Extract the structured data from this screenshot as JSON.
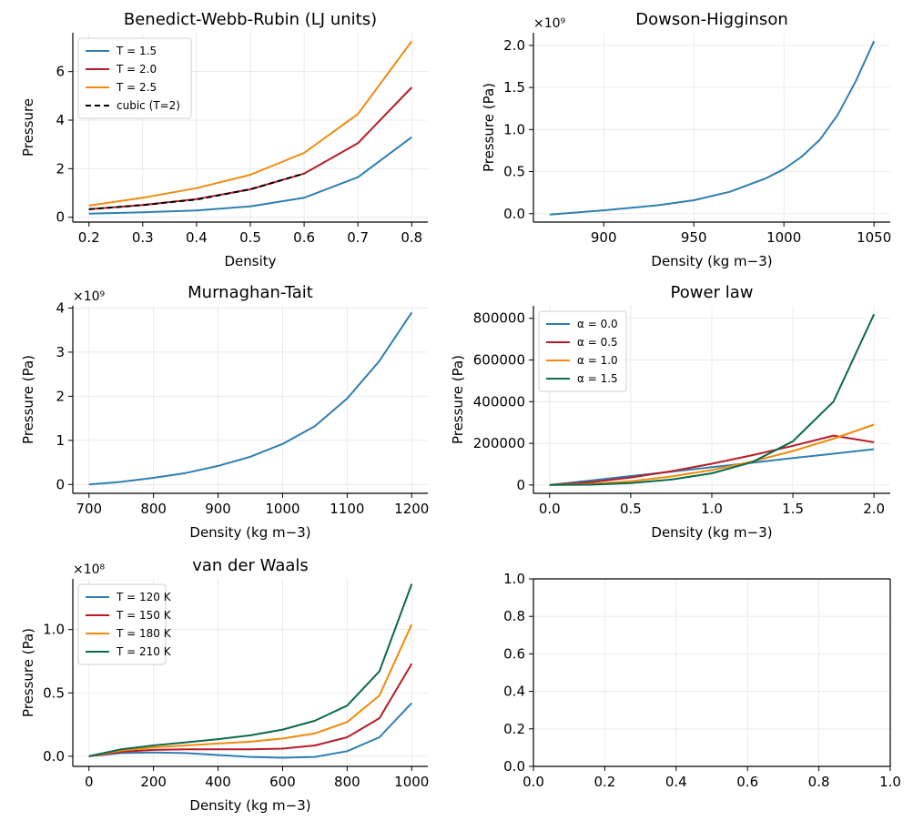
{
  "chart_data": [
    {
      "id": "bwr",
      "type": "line",
      "title": "Benedict-Webb-Rubin (LJ units)",
      "xlabel": "Density",
      "ylabel": "Pressure",
      "xlim": [
        0.17,
        0.83
      ],
      "ylim": [
        -0.2,
        7.6
      ],
      "xticks": [
        0.2,
        0.3,
        0.4,
        0.5,
        0.6,
        0.7,
        0.8
      ],
      "xtick_labels": [
        "0.2",
        "0.3",
        "0.4",
        "0.5",
        "0.6",
        "0.7",
        "0.8"
      ],
      "yticks": [
        0,
        2,
        4,
        6
      ],
      "ytick_labels": [
        "0",
        "2",
        "4",
        "6"
      ],
      "offset_label": "",
      "grid": true,
      "legend": "top-left",
      "series": [
        {
          "name": "T = 1.5",
          "color": "#2e7fb0",
          "dash": "",
          "x": [
            0.2,
            0.3,
            0.4,
            0.5,
            0.6,
            0.7,
            0.8
          ],
          "y": [
            0.15,
            0.2,
            0.28,
            0.45,
            0.8,
            1.65,
            3.3
          ]
        },
        {
          "name": "T = 2.0",
          "color": "#b71c25",
          "dash": "",
          "x": [
            0.2,
            0.3,
            0.4,
            0.5,
            0.6,
            0.7,
            0.8
          ],
          "y": [
            0.33,
            0.5,
            0.75,
            1.15,
            1.8,
            3.05,
            5.35
          ]
        },
        {
          "name": "T = 2.5",
          "color": "#f08a0c",
          "dash": "",
          "x": [
            0.2,
            0.3,
            0.4,
            0.5,
            0.6,
            0.7,
            0.8
          ],
          "y": [
            0.48,
            0.8,
            1.2,
            1.75,
            2.65,
            4.25,
            7.25
          ]
        },
        {
          "name": "cubic (T=2)",
          "color": "#000000",
          "dash": "6,4",
          "x": [
            0.2,
            0.3,
            0.4,
            0.5,
            0.6
          ],
          "y": [
            0.33,
            0.5,
            0.73,
            1.15,
            1.8
          ]
        }
      ]
    },
    {
      "id": "dowson",
      "type": "line",
      "title": "Dowson-Higginson",
      "xlabel": "Density (kg m−3)",
      "ylabel": "Pressure (Pa)",
      "xlim": [
        861,
        1059
      ],
      "ylim": [
        -0.1,
        2.15
      ],
      "xticks": [
        900,
        950,
        1000,
        1050
      ],
      "xtick_labels": [
        "900",
        "950",
        "1000",
        "1050"
      ],
      "yticks": [
        0,
        0.5,
        1.0,
        1.5,
        2.0
      ],
      "ytick_labels": [
        "0.0",
        "0.5",
        "1.0",
        "1.5",
        "2.0"
      ],
      "offset_label": "×10⁹",
      "grid": true,
      "legend": "none",
      "series": [
        {
          "name": "",
          "color": "#2e7fb0",
          "dash": "",
          "x": [
            870,
            900,
            930,
            950,
            970,
            990,
            1000,
            1010,
            1020,
            1030,
            1040,
            1050
          ],
          "y": [
            -0.01,
            0.04,
            0.1,
            0.16,
            0.26,
            0.42,
            0.53,
            0.68,
            0.88,
            1.18,
            1.58,
            2.05
          ]
        }
      ]
    },
    {
      "id": "murnaghan",
      "type": "line",
      "title": "Murnaghan-Tait",
      "xlabel": "Density (kg m−3)",
      "ylabel": "Pressure (Pa)",
      "xlim": [
        675,
        1225
      ],
      "ylim": [
        -0.2,
        4.05
      ],
      "xticks": [
        700,
        800,
        900,
        1000,
        1100,
        1200
      ],
      "xtick_labels": [
        "700",
        "800",
        "900",
        "1000",
        "1100",
        "1200"
      ],
      "yticks": [
        0,
        1,
        2,
        3,
        4
      ],
      "ytick_labels": [
        "0",
        "1",
        "2",
        "3",
        "4"
      ],
      "offset_label": "×10⁹",
      "grid": true,
      "legend": "none",
      "series": [
        {
          "name": "",
          "color": "#2e7fb0",
          "dash": "",
          "x": [
            700,
            750,
            800,
            850,
            900,
            950,
            1000,
            1050,
            1100,
            1150,
            1200
          ],
          "y": [
            0.0,
            0.06,
            0.15,
            0.26,
            0.42,
            0.63,
            0.92,
            1.32,
            1.95,
            2.8,
            3.9
          ]
        }
      ]
    },
    {
      "id": "powerlaw",
      "type": "line",
      "title": "Power law",
      "xlabel": "Density (kg m−3)",
      "ylabel": "Pressure (Pa)",
      "xlim": [
        -0.1,
        2.1
      ],
      "ylim": [
        -40000,
        860000
      ],
      "xticks": [
        0,
        0.5,
        1.0,
        1.5,
        2.0
      ],
      "xtick_labels": [
        "0.0",
        "0.5",
        "1.0",
        "1.5",
        "2.0"
      ],
      "yticks": [
        0,
        200000,
        400000,
        600000,
        800000
      ],
      "ytick_labels": [
        "0",
        "200000",
        "400000",
        "600000",
        "800000"
      ],
      "offset_label": "",
      "grid": true,
      "legend": "top-left",
      "series": [
        {
          "name": "α = 0.0",
          "color": "#2e7fb0",
          "dash": "",
          "x": [
            0,
            0.25,
            0.5,
            0.75,
            1.0,
            1.25,
            1.5,
            1.75,
            2.0
          ],
          "y": [
            0,
            21000,
            43000,
            64000,
            86000,
            107000,
            129000,
            150000,
            172000
          ]
        },
        {
          "name": "α = 0.5",
          "color": "#b71c25",
          "dash": "",
          "x": [
            0,
            0.25,
            0.5,
            0.75,
            1.0,
            1.25,
            1.5,
            1.75,
            2.0
          ],
          "y": [
            0,
            13000,
            36000,
            66000,
            102000,
            143000,
            188000,
            237000,
            205000
          ]
        },
        {
          "name": "α = 1.0",
          "color": "#f08a0c",
          "dash": "",
          "x": [
            0,
            0.25,
            0.5,
            0.75,
            1.0,
            1.25,
            1.5,
            1.75,
            2.0
          ],
          "y": [
            0,
            4500,
            18000,
            41000,
            72000,
            113000,
            163000,
            222000,
            290000
          ]
        },
        {
          "name": "α = 1.5",
          "color": "#0b6a4c",
          "dash": "",
          "x": [
            0,
            0.25,
            0.5,
            0.75,
            1.0,
            1.25,
            1.5,
            1.75,
            2.0
          ],
          "y": [
            0,
            1500,
            9000,
            26000,
            56000,
            110000,
            210000,
            400000,
            820000
          ]
        }
      ]
    },
    {
      "id": "vdw",
      "type": "line",
      "title": "van der Waals",
      "xlabel": "Density (kg m−3)",
      "ylabel": "Pressure (Pa)",
      "xlim": [
        -50,
        1050
      ],
      "ylim": [
        -0.08,
        1.4
      ],
      "xticks": [
        0,
        200,
        400,
        600,
        800,
        1000
      ],
      "xtick_labels": [
        "0",
        "200",
        "400",
        "600",
        "800",
        "1000"
      ],
      "yticks": [
        0,
        0.5,
        1.0
      ],
      "ytick_labels": [
        "0.0",
        "0.5",
        "1.0"
      ],
      "offset_label": "×10⁸",
      "grid": true,
      "legend": "top-left",
      "series": [
        {
          "name": "T = 120 K",
          "color": "#2e7fb0",
          "dash": "",
          "x": [
            0,
            100,
            200,
            300,
            400,
            500,
            600,
            700,
            800,
            900,
            1000
          ],
          "y": [
            0.0,
            0.025,
            0.03,
            0.025,
            0.01,
            -0.005,
            -0.012,
            -0.005,
            0.04,
            0.15,
            0.42
          ]
        },
        {
          "name": "T = 150 K",
          "color": "#b71c25",
          "dash": "",
          "x": [
            0,
            100,
            200,
            300,
            400,
            500,
            600,
            700,
            800,
            900,
            1000
          ],
          "y": [
            0.0,
            0.035,
            0.05,
            0.055,
            0.055,
            0.055,
            0.06,
            0.085,
            0.15,
            0.3,
            0.73
          ]
        },
        {
          "name": "T = 180 K",
          "color": "#f08a0c",
          "dash": "",
          "x": [
            0,
            100,
            200,
            300,
            400,
            500,
            600,
            700,
            800,
            900,
            1000
          ],
          "y": [
            0.0,
            0.045,
            0.07,
            0.085,
            0.1,
            0.115,
            0.14,
            0.18,
            0.27,
            0.48,
            1.04
          ]
        },
        {
          "name": "T = 210 K",
          "color": "#0b6a4c",
          "dash": "",
          "x": [
            0,
            100,
            200,
            300,
            400,
            500,
            600,
            700,
            800,
            900,
            1000
          ],
          "y": [
            0.0,
            0.055,
            0.085,
            0.11,
            0.135,
            0.165,
            0.21,
            0.28,
            0.4,
            0.67,
            1.36
          ]
        }
      ]
    },
    {
      "id": "empty",
      "type": "line",
      "title": "",
      "xlabel": "",
      "ylabel": "",
      "xlim": [
        0,
        1
      ],
      "ylim": [
        0,
        1
      ],
      "xticks": [
        0,
        0.2,
        0.4,
        0.6,
        0.8,
        1.0
      ],
      "xtick_labels": [
        "0.0",
        "0.2",
        "0.4",
        "0.6",
        "0.8",
        "1.0"
      ],
      "yticks": [
        0,
        0.2,
        0.4,
        0.6,
        0.8,
        1.0
      ],
      "ytick_labels": [
        "0.0",
        "0.2",
        "0.4",
        "0.6",
        "0.8",
        "1.0"
      ],
      "offset_label": "",
      "grid": true,
      "legend": "none",
      "series": []
    }
  ]
}
